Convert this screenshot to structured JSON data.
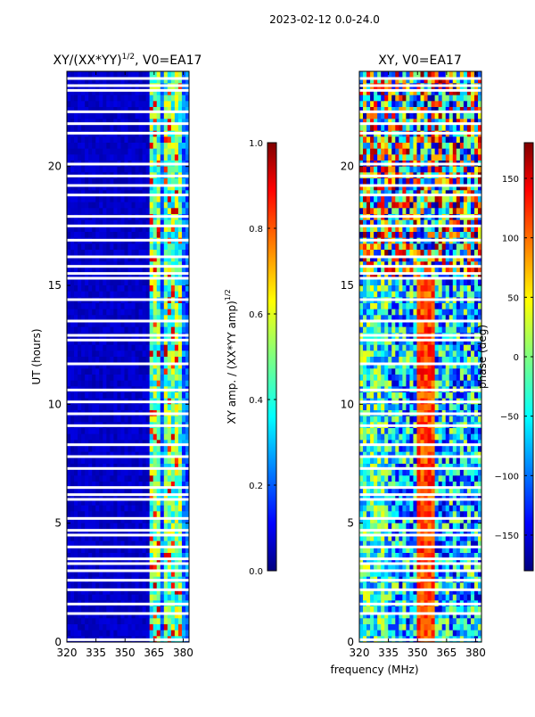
{
  "figure": {
    "suptitle": "2023-02-12 0.0-24.0",
    "shared_xlabel": "frequency (MHz)"
  },
  "chart_data": [
    {
      "type": "heatmap",
      "title": "XY/(XX*YY)^1/2, V0=EA17",
      "title_main": "XY/(XX*YY)",
      "title_exp": "1/2",
      "title_tail": ", V0=EA17",
      "xlabel": "",
      "ylabel": "UT (hours)",
      "xlim": [
        320,
        383
      ],
      "ylim": [
        0,
        24
      ],
      "xticks": [
        320,
        335,
        350,
        365,
        380
      ],
      "yticks": [
        0,
        5,
        10,
        15,
        20
      ],
      "colormap": "jet",
      "colorbar": {
        "label": "XY amp. / (XX*YY amp)^1/2",
        "label_main": "XY amp. / (XX*YY amp)",
        "label_exp": "1/2",
        "range": [
          0.0,
          1.0
        ],
        "ticks": [
          0.0,
          0.2,
          0.4,
          0.6,
          0.8,
          1.0
        ],
        "tick_labels": [
          "0.0",
          "0.2",
          "0.4",
          "0.6",
          "0.8",
          "1.0"
        ]
      },
      "blank_hours": [
        0.1,
        1.2,
        1.6,
        2.2,
        2.6,
        3.0,
        3.3,
        3.5,
        4.0,
        4.5,
        4.7,
        5.2,
        6.0,
        6.2,
        6.5,
        7.3,
        7.8,
        8.3,
        9.1,
        9.6,
        10.1,
        10.6,
        11.7,
        12.7,
        12.9,
        13.5,
        14.4,
        15.3,
        15.5,
        15.8,
        16.2,
        16.9,
        17.5,
        17.9,
        18.8,
        19.2,
        19.6,
        20.1,
        21.4,
        21.8,
        22.3,
        23.2,
        23.4,
        23.7
      ]
    },
    {
      "type": "heatmap",
      "title": "XY, V0=EA17",
      "xlabel": "frequency (MHz)",
      "ylabel": "",
      "xlim": [
        320,
        383
      ],
      "ylim": [
        0,
        24
      ],
      "xticks": [
        320,
        335,
        350,
        365,
        380
      ],
      "yticks": [
        0,
        5,
        10,
        15,
        20
      ],
      "colormap": "jet",
      "colorbar": {
        "label": "phase (deg)",
        "range": [
          -180,
          180
        ],
        "ticks": [
          -150,
          -100,
          -50,
          0,
          50,
          100,
          150
        ],
        "tick_labels": [
          "−150",
          "−100",
          "−50",
          "0",
          "50",
          "100",
          "150"
        ]
      },
      "blank_hours": [
        0.1,
        1.2,
        1.6,
        2.2,
        2.6,
        3.0,
        3.3,
        3.5,
        4.0,
        4.5,
        4.7,
        5.2,
        6.0,
        6.2,
        6.5,
        7.3,
        7.8,
        8.3,
        9.1,
        9.6,
        10.1,
        10.6,
        11.7,
        12.7,
        12.9,
        13.5,
        14.4,
        15.3,
        15.5,
        15.8,
        16.2,
        16.9,
        17.5,
        17.9,
        18.8,
        19.2,
        19.6,
        20.1,
        21.4,
        21.8,
        22.3,
        23.2,
        23.4,
        23.7
      ]
    }
  ]
}
